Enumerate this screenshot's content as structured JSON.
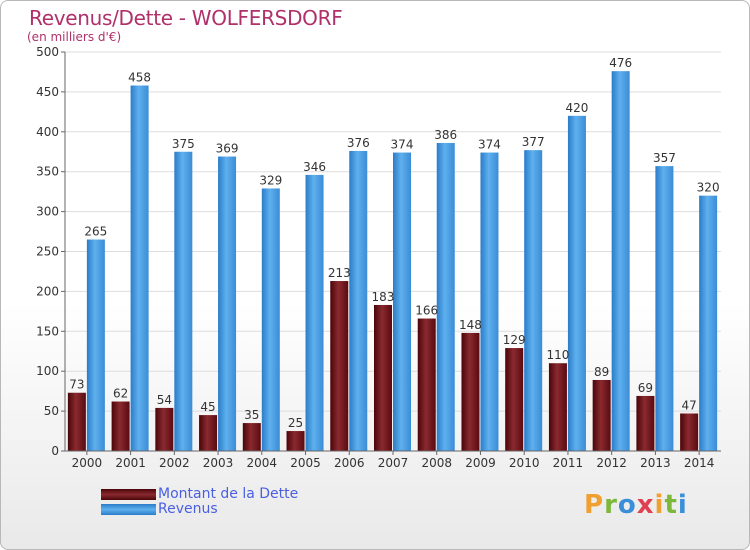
{
  "header": {
    "title": "Revenus/Dette - WOLFERSDORF",
    "subtitle": "(en milliers d'€)"
  },
  "colors": {
    "dette": "#7a1a22",
    "dette_dark": "#4a0508",
    "revenus": "#4da3e6",
    "revenus_dark": "#2a7cc8",
    "title": "#b0306a",
    "legend_text": "#4a5fe0",
    "grid": "#dddddd",
    "axis": "#666666"
  },
  "legend": {
    "items": [
      {
        "label": "Montant de la Dette",
        "color": "#7a1a22"
      },
      {
        "label": "Revenus",
        "color": "#4da3e6"
      }
    ]
  },
  "logo": {
    "text": "Proxiti",
    "letters": [
      {
        "ch": "P",
        "color": "#f0a030"
      },
      {
        "ch": "r",
        "color": "#7cb83a"
      },
      {
        "ch": "o",
        "color": "#3a8fd8"
      },
      {
        "ch": "x",
        "color": "#e04050"
      },
      {
        "ch": "i",
        "color": "#f0a030"
      },
      {
        "ch": "t",
        "color": "#7cb83a"
      },
      {
        "ch": "i",
        "color": "#3a8fd8"
      }
    ]
  },
  "chart_data": {
    "type": "bar",
    "title": "Revenus/Dette - WOLFERSDORF",
    "ylabel": "(en milliers d'€)",
    "xlabel": "",
    "categories": [
      "2000",
      "2001",
      "2002",
      "2003",
      "2004",
      "2005",
      "2006",
      "2007",
      "2008",
      "2009",
      "2010",
      "2011",
      "2012",
      "2013",
      "2014"
    ],
    "series": [
      {
        "name": "Montant de la Dette",
        "values": [
          73,
          62,
          54,
          45,
          35,
          25,
          213,
          183,
          166,
          148,
          129,
          110,
          89,
          69,
          47
        ]
      },
      {
        "name": "Revenus",
        "values": [
          265,
          458,
          375,
          369,
          329,
          346,
          376,
          374,
          386,
          374,
          377,
          420,
          476,
          357,
          320
        ]
      }
    ],
    "ylim": [
      0,
      500
    ],
    "yticks": [
      0,
      50,
      100,
      150,
      200,
      250,
      300,
      350,
      400,
      450,
      500
    ],
    "grid": true,
    "legend_position": "bottom-left"
  }
}
